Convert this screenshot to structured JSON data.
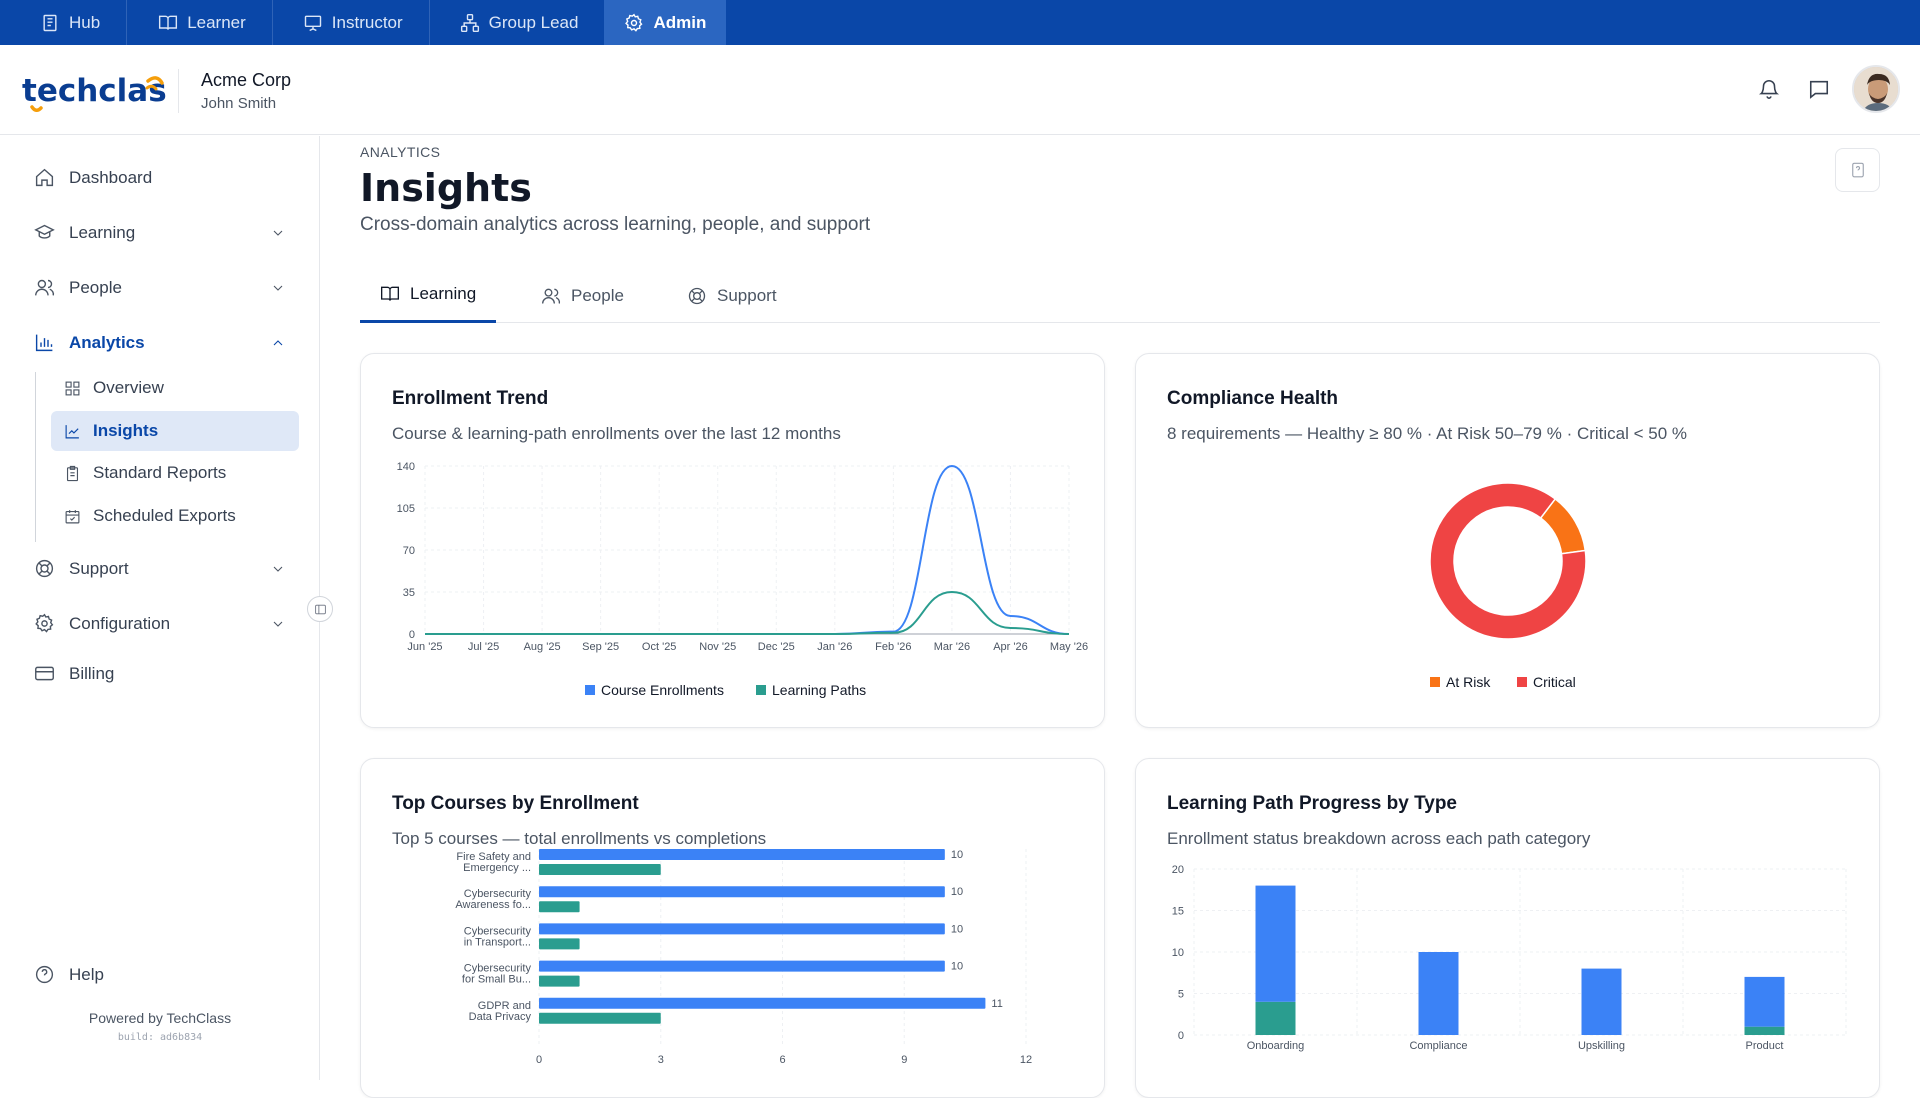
{
  "topnav": {
    "items": [
      {
        "label": "Hub",
        "icon": "hub-icon"
      },
      {
        "label": "Learner",
        "icon": "book-icon"
      },
      {
        "label": "Instructor",
        "icon": "presentation-icon"
      },
      {
        "label": "Group Lead",
        "icon": "group-icon"
      },
      {
        "label": "Admin",
        "icon": "gear-icon",
        "active": true
      }
    ]
  },
  "header": {
    "logo_text": "techclass",
    "org_name": "Acme Corp",
    "user_name": "John Smith"
  },
  "sidebar": {
    "items": [
      {
        "label": "Dashboard",
        "icon": "home-icon"
      },
      {
        "label": "Learning",
        "icon": "graduation-cap-icon"
      },
      {
        "label": "People",
        "icon": "users-icon"
      },
      {
        "label": "Analytics",
        "icon": "bar-chart-icon"
      },
      {
        "label": "Support",
        "icon": "lifebuoy-icon"
      },
      {
        "label": "Configuration",
        "icon": "gear-icon"
      },
      {
        "label": "Billing",
        "icon": "credit-card-icon"
      }
    ],
    "analytics_sub": [
      {
        "label": "Overview",
        "icon": "grid-icon"
      },
      {
        "label": "Insights",
        "icon": "line-chart-icon",
        "active": true
      },
      {
        "label": "Standard Reports",
        "icon": "clipboard-icon"
      },
      {
        "label": "Scheduled Exports",
        "icon": "calendar-icon"
      }
    ],
    "help_label": "Help",
    "powered_by": "Powered by TechClass",
    "build": "build: ad6b834"
  },
  "page": {
    "eyebrow": "ANALYTICS",
    "title": "Insights",
    "subtitle": "Cross-domain analytics across learning, people, and support"
  },
  "tabs": [
    {
      "label": "Learning",
      "icon": "book-icon",
      "active": true
    },
    {
      "label": "People",
      "icon": "users-icon"
    },
    {
      "label": "Support",
      "icon": "lifebuoy-icon"
    }
  ],
  "colors": {
    "brand": "#0a47a8",
    "blue": "#3b82f6",
    "teal": "#2a9d8f",
    "orange": "#f97316",
    "red": "#ef4444"
  },
  "cards": {
    "enrollment": {
      "title": "Enrollment Trend",
      "subtitle": "Course & learning-path enrollments over the last 12 months"
    },
    "compliance": {
      "title": "Compliance Health",
      "subtitle": "8 requirements — Healthy ≥ 80 % · At Risk 50–79 % · Critical < 50 %"
    },
    "topcourses": {
      "title": "Top Courses by Enrollment",
      "subtitle": "Top 5 courses — total enrollments vs completions"
    },
    "pathprogress": {
      "title": "Learning Path Progress by Type",
      "subtitle": "Enrollment status breakdown across each path category"
    }
  },
  "chart_data": [
    {
      "id": "enrollment",
      "type": "line",
      "x": [
        "Jun '25",
        "Jul '25",
        "Aug '25",
        "Sep '25",
        "Oct '25",
        "Nov '25",
        "Dec '25",
        "Jan '26",
        "Feb '26",
        "Mar '26",
        "Apr '26",
        "May '26"
      ],
      "ylim": [
        0,
        140
      ],
      "yticks": [
        0,
        35,
        70,
        105,
        140
      ],
      "series": [
        {
          "name": "Course Enrollments",
          "color": "#3b82f6",
          "values": [
            0,
            0,
            0,
            0,
            0,
            0,
            0,
            0,
            2,
            140,
            15,
            0
          ]
        },
        {
          "name": "Learning Paths",
          "color": "#2a9d8f",
          "values": [
            0,
            0,
            0,
            0,
            0,
            0,
            0,
            0,
            1,
            35,
            5,
            0
          ]
        }
      ],
      "legend": "bottom"
    },
    {
      "id": "compliance",
      "type": "pie",
      "donut": true,
      "slices": [
        {
          "name": "At Risk",
          "color": "#f97316",
          "value": 1
        },
        {
          "name": "Critical",
          "color": "#ef4444",
          "value": 7
        }
      ],
      "legend": "bottom"
    },
    {
      "id": "topcourses",
      "type": "bar",
      "orientation": "horizontal",
      "categories": [
        [
          "Fire Safety and",
          "Emergency ..."
        ],
        [
          "Cybersecurity",
          "Awareness fo..."
        ],
        [
          "Cybersecurity",
          "in Transport..."
        ],
        [
          "Cybersecurity",
          "for Small Bu..."
        ],
        [
          "GDPR and",
          "Data Privacy"
        ]
      ],
      "series": [
        {
          "color": "#3b82f6",
          "values": [
            10,
            10,
            10,
            10,
            11
          ]
        },
        {
          "color": "#2a9d8f",
          "values": [
            3,
            1,
            1,
            1,
            3
          ]
        }
      ],
      "xlim": [
        0,
        12
      ],
      "xticks": [
        0,
        3,
        6,
        9,
        12
      ]
    },
    {
      "id": "pathprogress",
      "type": "bar",
      "stacked": true,
      "categories": [
        "Onboarding",
        "Compliance",
        "Upskilling",
        "Product"
      ],
      "series": [
        {
          "color": "#2a9d8f",
          "values": [
            4,
            0,
            0,
            1
          ]
        },
        {
          "color": "#3b82f6",
          "values": [
            14,
            10,
            8,
            6
          ]
        }
      ],
      "ylim": [
        0,
        20
      ],
      "yticks": [
        0,
        5,
        10,
        15,
        20
      ]
    }
  ]
}
